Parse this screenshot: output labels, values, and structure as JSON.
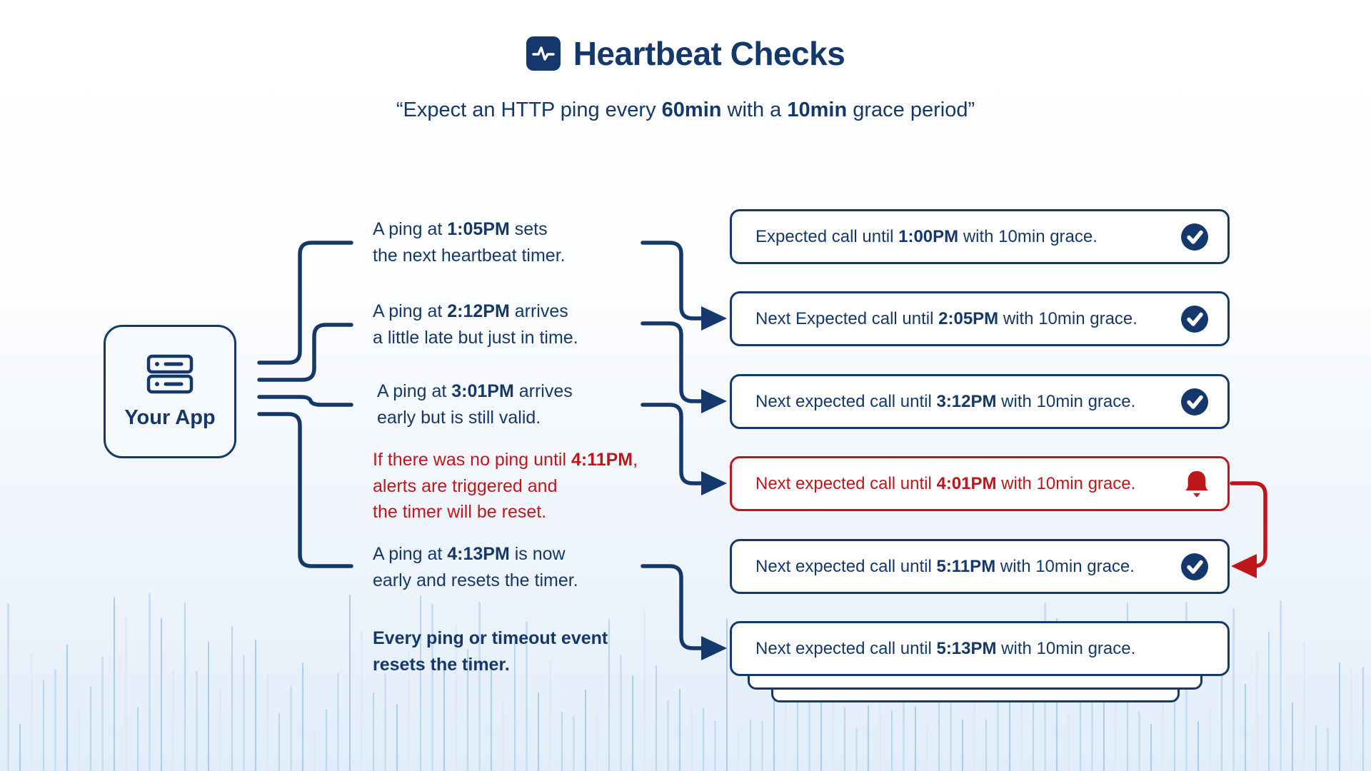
{
  "header": {
    "title": "Heartbeat Checks",
    "subtitle_segments": [
      {
        "t": "“Expect an HTTP ping every ",
        "b": false
      },
      {
        "t": "60min",
        "b": true
      },
      {
        "t": " with a ",
        "b": false
      },
      {
        "t": "10min",
        "b": true
      },
      {
        "t": " grace period”",
        "b": false
      }
    ]
  },
  "app_node": {
    "label": "Your App",
    "icon": "server-icon"
  },
  "annotations": [
    {
      "id": "ping-1",
      "color": "navy",
      "segments": [
        {
          "t": "A ping at ",
          "b": false
        },
        {
          "t": "1:05PM",
          "b": true
        },
        {
          "t": " sets\nthe next heartbeat timer.",
          "b": false
        }
      ]
    },
    {
      "id": "ping-2",
      "color": "navy",
      "segments": [
        {
          "t": "A ping at ",
          "b": false
        },
        {
          "t": "2:12PM",
          "b": true
        },
        {
          "t": " arrives\na little late but just in time.",
          "b": false
        }
      ]
    },
    {
      "id": "ping-3",
      "color": "navy",
      "segments": [
        {
          "t": "A ping at ",
          "b": false
        },
        {
          "t": "3:01PM",
          "b": true
        },
        {
          "t": " arrives\nearly but is still valid.",
          "b": false
        }
      ]
    },
    {
      "id": "timeout-alert",
      "color": "red",
      "segments": [
        {
          "t": "If there was no ping until ",
          "b": false
        },
        {
          "t": "4:11PM",
          "b": true
        },
        {
          "t": ",\nalerts are triggered and\nthe timer will be reset.",
          "b": false
        }
      ]
    },
    {
      "id": "ping-4",
      "color": "navy",
      "segments": [
        {
          "t": "A ping at ",
          "b": false
        },
        {
          "t": "4:13PM",
          "b": true
        },
        {
          "t": " is now\nearly and resets the timer.",
          "b": false
        }
      ]
    },
    {
      "id": "reset-note",
      "color": "navy",
      "segments": [
        {
          "t": "Every ping or timeout event\nresets the timer.",
          "b": true
        }
      ]
    }
  ],
  "timeline": [
    {
      "status": "ok",
      "icon": "check-icon",
      "segments": [
        {
          "t": "Expected call until ",
          "b": false
        },
        {
          "t": "1:00PM",
          "b": true
        },
        {
          "t": " with 10min grace.",
          "b": false
        }
      ]
    },
    {
      "status": "ok",
      "icon": "check-icon",
      "segments": [
        {
          "t": "Next Expected call until ",
          "b": false
        },
        {
          "t": "2:05PM",
          "b": true
        },
        {
          "t": " with 10min grace.",
          "b": false
        }
      ]
    },
    {
      "status": "ok",
      "icon": "check-icon",
      "segments": [
        {
          "t": "Next expected call until ",
          "b": false
        },
        {
          "t": "3:12PM",
          "b": true
        },
        {
          "t": " with 10min grace.",
          "b": false
        }
      ]
    },
    {
      "status": "alert",
      "icon": "bell-icon",
      "segments": [
        {
          "t": "Next expected call until ",
          "b": false
        },
        {
          "t": "4:01PM",
          "b": true
        },
        {
          "t": " with 10min grace.",
          "b": false
        }
      ]
    },
    {
      "status": "ok",
      "icon": "check-icon",
      "segments": [
        {
          "t": "Next expected call until ",
          "b": false
        },
        {
          "t": "5:11PM",
          "b": true
        },
        {
          "t": " with 10min grace.",
          "b": false
        }
      ]
    },
    {
      "status": "none",
      "icon": "",
      "segments": [
        {
          "t": "Next expected call until ",
          "b": false
        },
        {
          "t": "5:13PM",
          "b": true
        },
        {
          "t": " with 10min grace.",
          "b": false
        }
      ]
    }
  ],
  "colors": {
    "navy": "#14386b",
    "red": "#bf161c",
    "card_bg": "#ffffff",
    "bg_gradient_bottom": "#e2edf9",
    "wave_palette": [
      "#cadff3",
      "#a9cdec",
      "#dcebf8",
      "#b9d6ef"
    ]
  }
}
